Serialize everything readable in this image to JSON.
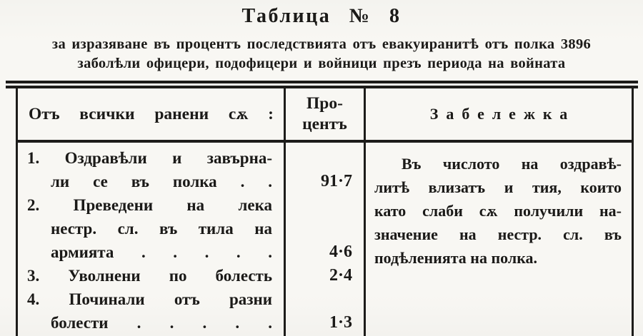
{
  "document": {
    "title": "Таблица № 8",
    "subtitle": {
      "line1": "за изразяване въ процентъ последствията отъ евакуиранитѣ отъ полка 3896",
      "line2": "заболѣли офицери, подофицери и войници презъ периода на войната"
    }
  },
  "table": {
    "header": {
      "col1": "Отъ всички ранени сѫ :",
      "col2_line1": "Про-",
      "col2_line2": "центъ",
      "col3": "Забележка"
    },
    "body": {
      "col1_lines": [
        "1. Оздравѣли и завърна-",
        "ли се въ полка . .",
        "2. Преведени на лека",
        "нестр. сл. въ тила на",
        "армията . . . . .",
        "3. Уволнени по болесть",
        "4. Починали отъ разни",
        "болести . . . . ."
      ],
      "percent_lines": [
        "",
        "91·7",
        "",
        "",
        "4·6",
        "2·4",
        "",
        "1·3"
      ],
      "remark_lines": [
        "Въ числото на оздравѣ-",
        "литѣ влизатъ и тия, които",
        "като слаби сѫ получили на-",
        "значение на нестр. сл. въ",
        "подѣленията на полка."
      ]
    },
    "records": [
      {
        "no": "1",
        "label": "Оздравѣли и завърнали се въ полка",
        "percent": "91·7"
      },
      {
        "no": "2",
        "label": "Преведени на лека нестр. сл. въ тила на армията",
        "percent": "4·6"
      },
      {
        "no": "3",
        "label": "Уволнени по болесть",
        "percent": "2·4"
      },
      {
        "no": "4",
        "label": "Починали отъ разни болести",
        "percent": "1·3"
      }
    ],
    "colors": {
      "paper": "#f6f5f1",
      "ink": "#1b1a18"
    }
  }
}
